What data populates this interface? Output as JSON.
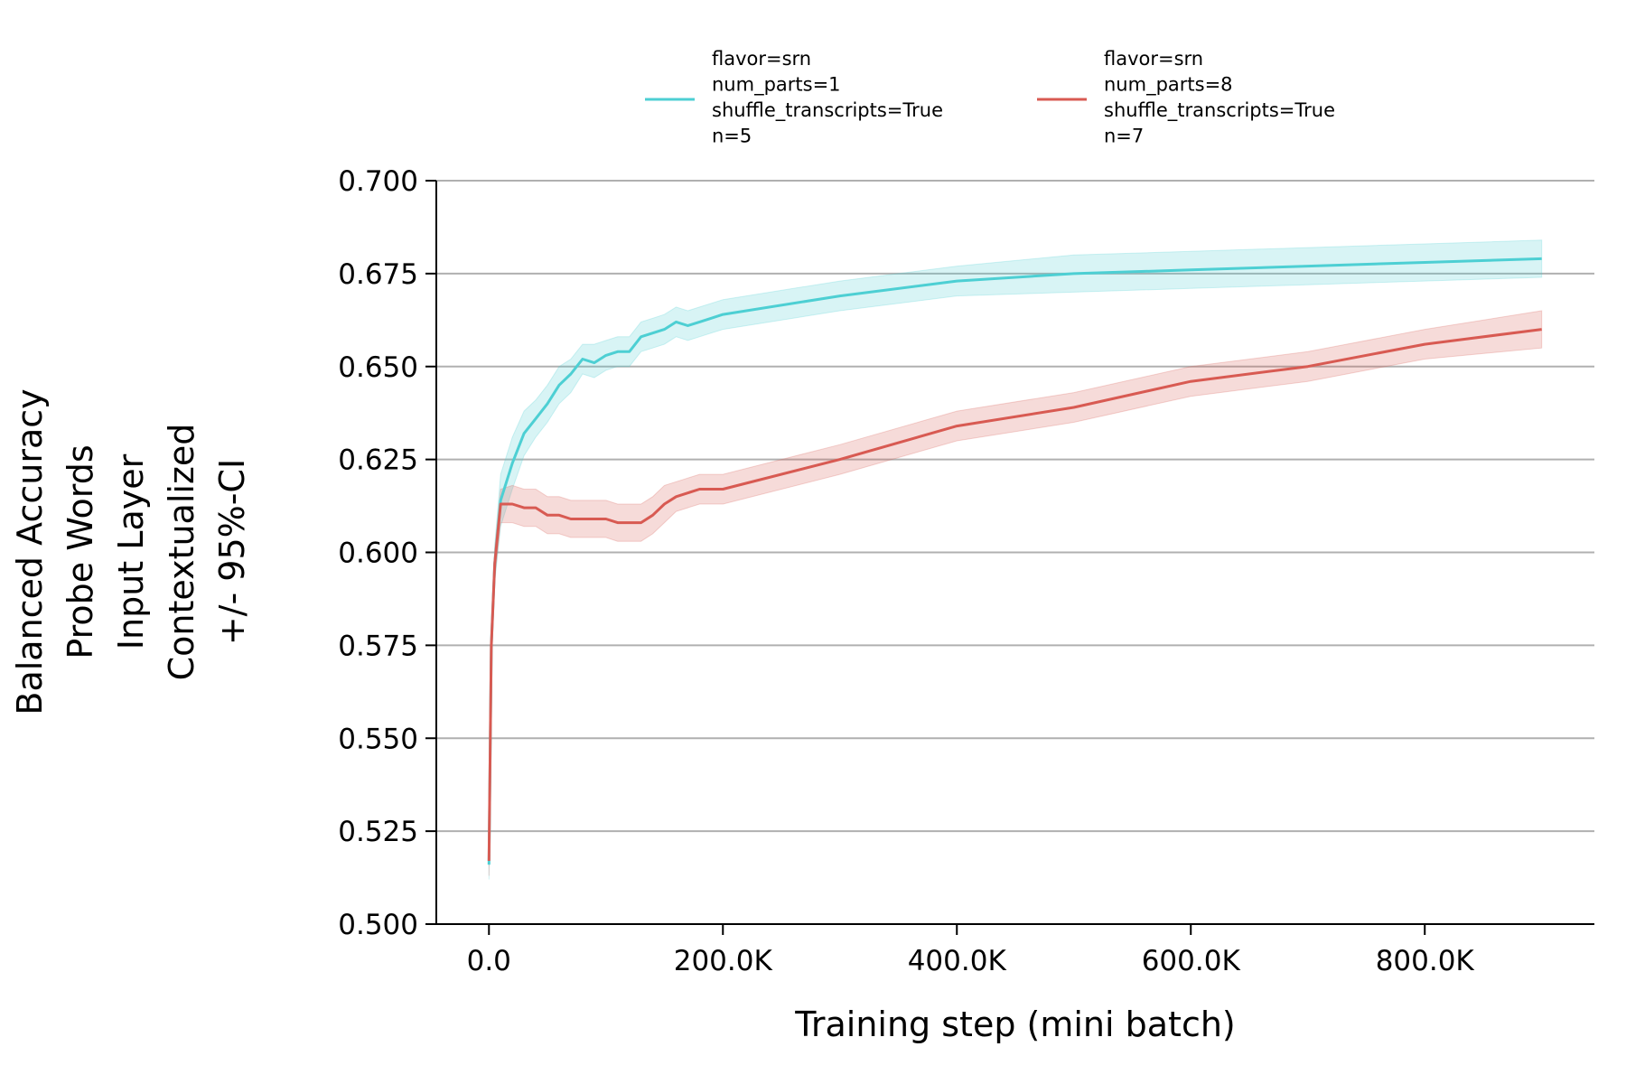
{
  "chart_data": {
    "type": "line",
    "xlabel": "Training step (mini batch)",
    "ylabel_lines": [
      "Balanced Accuracy",
      "Probe Words",
      "Input Layer",
      "Contextualized",
      "+/- 95%-CI"
    ],
    "xlim": [
      -45000,
      945000
    ],
    "ylim": [
      0.5,
      0.7
    ],
    "xticks": [
      0,
      200000,
      400000,
      600000,
      800000
    ],
    "xtick_labels": [
      "0.0",
      "200.0K",
      "400.0K",
      "600.0K",
      "800.0K"
    ],
    "yticks": [
      0.5,
      0.525,
      0.55,
      0.575,
      0.6,
      0.625,
      0.65,
      0.675,
      0.7
    ],
    "ytick_labels": [
      "0.500",
      "0.525",
      "0.550",
      "0.575",
      "0.600",
      "0.625",
      "0.650",
      "0.675",
      "0.700"
    ],
    "grid": "horizontal",
    "legend_position": "top",
    "series": [
      {
        "name": "flavor=srn\nnum_parts=1\nshuffle_transcripts=True\nn=5",
        "name_lines": [
          "flavor=srn",
          "num_parts=1",
          "shuffle_transcripts=True",
          "n=5"
        ],
        "color": "#4dcfd3",
        "points": [
          [
            0,
            0.516,
            0.512,
            0.52
          ],
          [
            2000,
            0.575,
            0.57,
            0.58
          ],
          [
            5000,
            0.597,
            0.592,
            0.602
          ],
          [
            10000,
            0.614,
            0.607,
            0.621
          ],
          [
            20000,
            0.624,
            0.617,
            0.631
          ],
          [
            30000,
            0.632,
            0.626,
            0.638
          ],
          [
            40000,
            0.636,
            0.631,
            0.641
          ],
          [
            50000,
            0.64,
            0.635,
            0.645
          ],
          [
            60000,
            0.645,
            0.64,
            0.65
          ],
          [
            70000,
            0.648,
            0.643,
            0.652
          ],
          [
            80000,
            0.652,
            0.648,
            0.656
          ],
          [
            90000,
            0.651,
            0.647,
            0.656
          ],
          [
            100000,
            0.653,
            0.649,
            0.657
          ],
          [
            110000,
            0.654,
            0.65,
            0.658
          ],
          [
            120000,
            0.654,
            0.65,
            0.658
          ],
          [
            130000,
            0.658,
            0.654,
            0.662
          ],
          [
            140000,
            0.659,
            0.655,
            0.663
          ],
          [
            150000,
            0.66,
            0.656,
            0.664
          ],
          [
            160000,
            0.662,
            0.658,
            0.666
          ],
          [
            170000,
            0.661,
            0.657,
            0.665
          ],
          [
            180000,
            0.662,
            0.658,
            0.666
          ],
          [
            190000,
            0.663,
            0.659,
            0.667
          ],
          [
            200000,
            0.664,
            0.66,
            0.668
          ],
          [
            300000,
            0.669,
            0.665,
            0.673
          ],
          [
            400000,
            0.673,
            0.669,
            0.677
          ],
          [
            500000,
            0.675,
            0.67,
            0.68
          ],
          [
            600000,
            0.676,
            0.671,
            0.681
          ],
          [
            700000,
            0.677,
            0.672,
            0.682
          ],
          [
            800000,
            0.678,
            0.673,
            0.683
          ],
          [
            900000,
            0.679,
            0.674,
            0.684
          ]
        ]
      },
      {
        "name": "flavor=srn\nnum_parts=8\nshuffle_transcripts=True\nn=7",
        "name_lines": [
          "flavor=srn",
          "num_parts=8",
          "shuffle_transcripts=True",
          "n=7"
        ],
        "color": "#d85a52",
        "points": [
          [
            0,
            0.517,
            0.513,
            0.521
          ],
          [
            2000,
            0.575,
            0.571,
            0.579
          ],
          [
            5000,
            0.597,
            0.593,
            0.601
          ],
          [
            10000,
            0.613,
            0.608,
            0.617
          ],
          [
            20000,
            0.613,
            0.608,
            0.618
          ],
          [
            30000,
            0.612,
            0.607,
            0.617
          ],
          [
            40000,
            0.612,
            0.607,
            0.617
          ],
          [
            50000,
            0.61,
            0.605,
            0.615
          ],
          [
            60000,
            0.61,
            0.605,
            0.615
          ],
          [
            70000,
            0.609,
            0.604,
            0.614
          ],
          [
            80000,
            0.609,
            0.604,
            0.614
          ],
          [
            90000,
            0.609,
            0.604,
            0.614
          ],
          [
            100000,
            0.609,
            0.604,
            0.614
          ],
          [
            110000,
            0.608,
            0.603,
            0.613
          ],
          [
            120000,
            0.608,
            0.603,
            0.613
          ],
          [
            130000,
            0.608,
            0.603,
            0.613
          ],
          [
            140000,
            0.61,
            0.605,
            0.615
          ],
          [
            150000,
            0.613,
            0.608,
            0.618
          ],
          [
            160000,
            0.615,
            0.611,
            0.619
          ],
          [
            170000,
            0.616,
            0.612,
            0.62
          ],
          [
            180000,
            0.617,
            0.613,
            0.621
          ],
          [
            190000,
            0.617,
            0.613,
            0.621
          ],
          [
            200000,
            0.617,
            0.613,
            0.621
          ],
          [
            300000,
            0.625,
            0.621,
            0.629
          ],
          [
            400000,
            0.634,
            0.63,
            0.638
          ],
          [
            500000,
            0.639,
            0.635,
            0.643
          ],
          [
            600000,
            0.646,
            0.642,
            0.65
          ],
          [
            700000,
            0.65,
            0.646,
            0.654
          ],
          [
            800000,
            0.656,
            0.652,
            0.66
          ],
          [
            900000,
            0.66,
            0.655,
            0.665
          ]
        ]
      }
    ]
  }
}
